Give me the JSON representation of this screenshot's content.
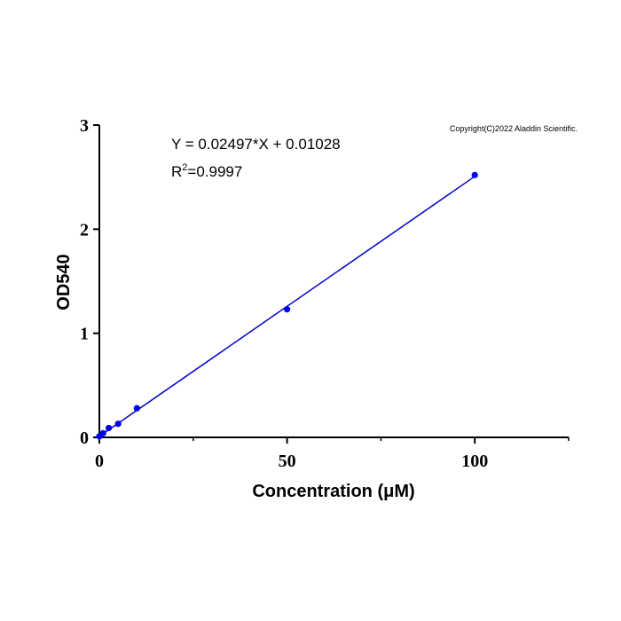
{
  "chart_data": {
    "type": "scatter",
    "title": "",
    "xlabel": "Concentration (μM)",
    "ylabel": "OD540",
    "xlim": [
      0,
      125
    ],
    "ylim": [
      0,
      3
    ],
    "x_ticks": [
      0,
      50,
      100
    ],
    "x_minor_ticks": [
      25,
      75,
      125
    ],
    "y_ticks": [
      0,
      1,
      2,
      3
    ],
    "grid": false,
    "point_color": "#0000ee",
    "line_color": "#0000cc",
    "series": [
      {
        "points": [
          {
            "x": 0,
            "y": 0.01
          },
          {
            "x": 1,
            "y": 0.04
          },
          {
            "x": 2.5,
            "y": 0.09
          },
          {
            "x": 5,
            "y": 0.13
          },
          {
            "x": 10,
            "y": 0.28
          },
          {
            "x": 50,
            "y": 1.23
          },
          {
            "x": 100,
            "y": 2.52
          }
        ]
      }
    ],
    "fit": {
      "slope": 0.02497,
      "intercept": 0.01028,
      "x_range": [
        0,
        100
      ],
      "equation_label": "Y = 0.02497*X + 0.01028",
      "r2_prefix": "R",
      "r2_sup": "2",
      "r2_value": "=0.9997"
    },
    "annotation": "Copyright(C)2022 Aladdin Scientific."
  }
}
